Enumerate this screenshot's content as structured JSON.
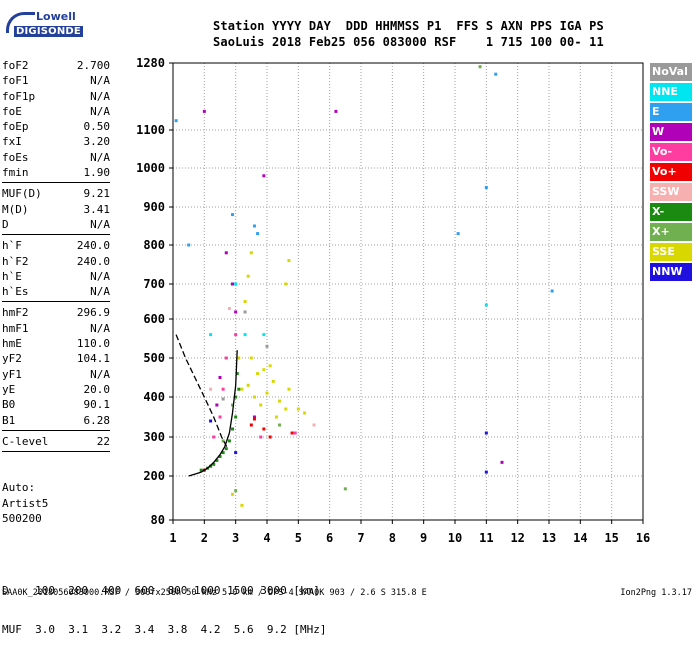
{
  "logo": {
    "line1": "Lowell",
    "line2": "DIGISONDE"
  },
  "header": {
    "line1": "Station YYYY DAY  DDD HHMMSS P1  FFS S AXN PPS IGA PS",
    "line2": "SaoLuis 2018 Feb25 056 083000 RSF    1 715 100 00- 11"
  },
  "params": {
    "group1": [
      {
        "k": "foF2",
        "v": "2.700"
      },
      {
        "k": "foF1",
        "v": "N/A"
      },
      {
        "k": "foF1p",
        "v": "N/A"
      },
      {
        "k": "foE",
        "v": "N/A"
      },
      {
        "k": "foEp",
        "v": "0.50"
      },
      {
        "k": "fxI",
        "v": "3.20"
      },
      {
        "k": "foEs",
        "v": "N/A"
      },
      {
        "k": "fmin",
        "v": "1.90"
      }
    ],
    "group2": [
      {
        "k": "MUF(D)",
        "v": "9.21"
      },
      {
        "k": "M(D)",
        "v": "3.41"
      },
      {
        "k": "D",
        "v": "N/A"
      }
    ],
    "group3": [
      {
        "k": "h`F",
        "v": "240.0"
      },
      {
        "k": "h`F2",
        "v": "240.0"
      },
      {
        "k": "h`E",
        "v": "N/A"
      },
      {
        "k": "h`Es",
        "v": "N/A"
      }
    ],
    "group4": [
      {
        "k": "hmF2",
        "v": "296.9"
      },
      {
        "k": "hmF1",
        "v": "N/A"
      },
      {
        "k": "hmE",
        "v": "110.0"
      },
      {
        "k": "yF2",
        "v": "104.1"
      },
      {
        "k": "yF1",
        "v": "N/A"
      },
      {
        "k": "yE",
        "v": "20.0"
      },
      {
        "k": "B0",
        "v": "90.1"
      },
      {
        "k": "B1",
        "v": "6.28"
      }
    ],
    "group5": [
      {
        "k": "C-level",
        "v": "22"
      }
    ]
  },
  "auto": {
    "line1": "Auto:",
    "line2": "Artist5",
    "line3": "500200"
  },
  "legend": [
    {
      "label": "NoVal",
      "color": "#9a9a9a"
    },
    {
      "label": "NNE",
      "color": "#00e6f0"
    },
    {
      "label": "E",
      "color": "#2fa0f0"
    },
    {
      "label": "W",
      "color": "#b000b8"
    },
    {
      "label": "Vo-",
      "color": "#ff3ca0"
    },
    {
      "label": "Vo+",
      "color": "#f00000"
    },
    {
      "label": "SSW",
      "color": "#f6b0b0"
    },
    {
      "label": "X-",
      "color": "#1a8a10"
    },
    {
      "label": "X+",
      "color": "#70b050"
    },
    {
      "label": "SSE",
      "color": "#d8d800"
    },
    {
      "label": "NNW",
      "color": "#2010e0"
    }
  ],
  "muf": {
    "line1": "D    100  200  400  600  800 1000 1500 3000 [km]",
    "line2": "MUF  3.0  3.1  3.2  3.4  3.8  4.2  5.6  9.2 [MHz]"
  },
  "footer": {
    "left": "SAA0K_2018056083000.RSF / 300fx256h 50 kHz 5.0 km / DPS-4 SAA0K 903 / 2.6 S 315.8 E",
    "right": "Ion2Png 1.3.17"
  },
  "chart_data": {
    "type": "scatter",
    "x": [
      1,
      2,
      3,
      4,
      5,
      6,
      7,
      8,
      9,
      10,
      11,
      12,
      13,
      14,
      15,
      16
    ],
    "y_ticks": [
      80,
      200,
      300,
      400,
      500,
      600,
      700,
      800,
      900,
      1000,
      1100,
      1280
    ],
    "xlim": [
      1,
      16
    ],
    "ylim": [
      80,
      1280
    ],
    "grid": true,
    "series": [
      {
        "name": "X-",
        "color": "#1a8a10",
        "points": [
          [
            1.9,
            215
          ],
          [
            2.2,
            225
          ],
          [
            2.4,
            240
          ],
          [
            2.6,
            260
          ],
          [
            2.8,
            290
          ],
          [
            2.9,
            320
          ],
          [
            3.0,
            350
          ],
          [
            2.5,
            250
          ],
          [
            2.7,
            270
          ],
          [
            3.0,
            400
          ],
          [
            3.05,
            460
          ],
          [
            2.3,
            230
          ],
          [
            2.1,
            220
          ],
          [
            3.1,
            420
          ]
        ]
      },
      {
        "name": "SSE",
        "color": "#d8d800",
        "points": [
          [
            3.2,
            420
          ],
          [
            3.4,
            430
          ],
          [
            3.6,
            400
          ],
          [
            3.8,
            380
          ],
          [
            4.0,
            410
          ],
          [
            4.2,
            440
          ],
          [
            4.4,
            390
          ],
          [
            4.6,
            370
          ],
          [
            3.5,
            500
          ],
          [
            3.9,
            470
          ],
          [
            4.3,
            350
          ],
          [
            4.7,
            420
          ],
          [
            3.3,
            650
          ],
          [
            3.4,
            720
          ],
          [
            3.5,
            780
          ],
          [
            4.7,
            760
          ],
          [
            4.6,
            700
          ],
          [
            3.1,
            500
          ],
          [
            3.7,
            460
          ],
          [
            4.1,
            480
          ],
          [
            5.0,
            370
          ],
          [
            5.2,
            360
          ],
          [
            2.9,
            150
          ],
          [
            3.2,
            120
          ]
        ]
      },
      {
        "name": "W",
        "color": "#b000b8",
        "points": [
          [
            2.0,
            1150
          ],
          [
            2.7,
            780
          ],
          [
            2.9,
            700
          ],
          [
            3.0,
            620
          ],
          [
            2.5,
            450
          ],
          [
            3.9,
            980
          ],
          [
            6.2,
            1150
          ],
          [
            11.5,
            235
          ],
          [
            2.4,
            380
          ],
          [
            3.6,
            350
          ]
        ]
      },
      {
        "name": "Vo-",
        "color": "#ff3ca0",
        "points": [
          [
            2.6,
            420
          ],
          [
            2.7,
            500
          ],
          [
            3.8,
            300
          ],
          [
            3.0,
            560
          ],
          [
            4.9,
            310
          ],
          [
            2.3,
            300
          ],
          [
            2.5,
            350
          ]
        ]
      },
      {
        "name": "Vo+",
        "color": "#f00000",
        "points": [
          [
            3.5,
            330
          ],
          [
            3.9,
            320
          ],
          [
            4.1,
            300
          ],
          [
            2.0,
            215
          ],
          [
            3.6,
            345
          ],
          [
            4.8,
            310
          ]
        ]
      },
      {
        "name": "E",
        "color": "#2fa0f0",
        "points": [
          [
            1.1,
            1125
          ],
          [
            3.6,
            850
          ],
          [
            1.5,
            800
          ],
          [
            2.9,
            880
          ],
          [
            3.7,
            830
          ],
          [
            11.3,
            1250
          ],
          [
            11.0,
            950
          ],
          [
            10.1,
            830
          ],
          [
            13.1,
            680
          ]
        ]
      },
      {
        "name": "NNE",
        "color": "#00e6f0",
        "points": [
          [
            3.0,
            700
          ],
          [
            3.3,
            560
          ],
          [
            2.2,
            560
          ],
          [
            11.0,
            640
          ],
          [
            3.9,
            560
          ]
        ]
      },
      {
        "name": "NNW",
        "color": "#2010e0",
        "points": [
          [
            11.0,
            210
          ],
          [
            11.0,
            310
          ],
          [
            3.0,
            260
          ],
          [
            2.2,
            340
          ]
        ]
      },
      {
        "name": "SSW",
        "color": "#f6b0b0",
        "points": [
          [
            2.2,
            420
          ],
          [
            5.5,
            330
          ],
          [
            2.8,
            630
          ]
        ]
      },
      {
        "name": "X+",
        "color": "#70b050",
        "points": [
          [
            4.4,
            330
          ],
          [
            2.6,
            290
          ],
          [
            2.9,
            380
          ],
          [
            3.0,
            160
          ],
          [
            6.5,
            165
          ],
          [
            10.8,
            1270
          ]
        ]
      },
      {
        "name": "NoVal",
        "color": "#9a9a9a",
        "points": [
          [
            2.6,
            395
          ],
          [
            3.3,
            620
          ],
          [
            4.0,
            530
          ]
        ]
      }
    ],
    "traces": [
      {
        "style": "solid",
        "points": [
          [
            1.5,
            200
          ],
          [
            1.7,
            205
          ],
          [
            1.9,
            210
          ],
          [
            2.1,
            220
          ],
          [
            2.3,
            235
          ],
          [
            2.5,
            255
          ],
          [
            2.65,
            275
          ],
          [
            2.8,
            310
          ],
          [
            2.9,
            360
          ],
          [
            3.0,
            430
          ],
          [
            3.05,
            520
          ]
        ]
      },
      {
        "style": "dashed",
        "points": [
          [
            1.1,
            560
          ],
          [
            1.4,
            500
          ],
          [
            1.7,
            450
          ],
          [
            2.0,
            400
          ],
          [
            2.3,
            350
          ],
          [
            2.55,
            300
          ],
          [
            2.75,
            270
          ]
        ]
      }
    ]
  }
}
